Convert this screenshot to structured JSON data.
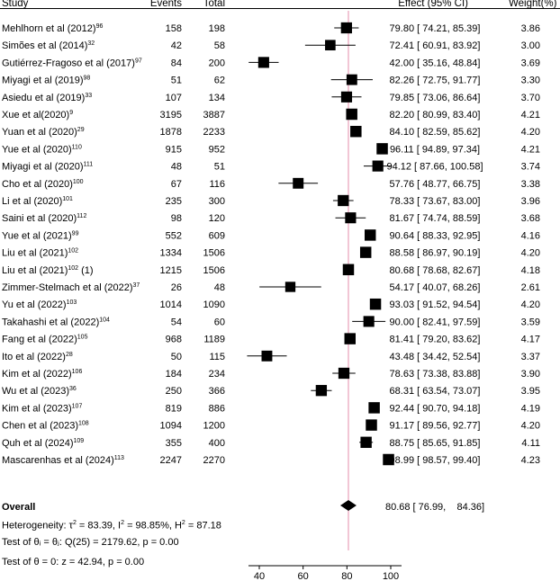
{
  "headers": {
    "study": "Study",
    "events": "Events",
    "total": "Total",
    "effect": "Effect (95% CI)",
    "weight": "Weight(%)"
  },
  "overall": {
    "label": "Overall",
    "effect": 80.68,
    "lo": 76.99,
    "hi": 84.36,
    "effect_text": "80.68 [ 76.99,    84.36]"
  },
  "heterogeneity": {
    "prefix": "Heterogeneity: τ",
    "tau2": "= 83.39, I",
    "i2": "= 98.85%, H",
    "h2": "= 87.18"
  },
  "test_theta_i": "Test of θᵢ = θⱼ: Q(25) = 2179.62, p = 0.00",
  "test_theta_0": "Test of θ = 0: z = 42.94, p = 0.00",
  "colors": {
    "reference_line": "#e8a0b8",
    "marker": "#000000"
  },
  "chart_data": {
    "type": "forest",
    "xlim": [
      40,
      100
    ],
    "xticks": [
      40,
      60,
      80,
      100
    ],
    "reference_line": 80.68,
    "studies": [
      {
        "name": "Mehlhorn et al (2012)",
        "sup": "96",
        "events": 158,
        "total": 198,
        "effect": 79.8,
        "lo": 74.21,
        "hi": 85.39,
        "weight": 3.86
      },
      {
        "name": "Simões et al (2014)",
        "sup": "32",
        "events": 42,
        "total": 58,
        "effect": 72.41,
        "lo": 60.91,
        "hi": 83.92,
        "weight": 3.0
      },
      {
        "name": "Gutiérrez-Fragoso et al (2017)",
        "sup": "97",
        "events": 84,
        "total": 200,
        "effect": 42.0,
        "lo": 35.16,
        "hi": 48.84,
        "weight": 3.69
      },
      {
        "name": "Miyagi et al (2019)",
        "sup": "98",
        "events": 51,
        "total": 62,
        "effect": 82.26,
        "lo": 72.75,
        "hi": 91.77,
        "weight": 3.3
      },
      {
        "name": "Asiedu et al (2019)",
        "sup": "33",
        "events": 107,
        "total": 134,
        "effect": 79.85,
        "lo": 73.06,
        "hi": 86.64,
        "weight": 3.7
      },
      {
        "name": "Xue et al(2020)",
        "sup": "9",
        "events": 3195,
        "total": 3887,
        "effect": 82.2,
        "lo": 80.99,
        "hi": 83.4,
        "weight": 4.21
      },
      {
        "name": "Yuan et al (2020)",
        "sup": "29",
        "events": 1878,
        "total": 2233,
        "effect": 84.1,
        "lo": 82.59,
        "hi": 85.62,
        "weight": 4.2
      },
      {
        "name": "Yue et al (2020)",
        "sup": "110",
        "events": 915,
        "total": 952,
        "effect": 96.11,
        "lo": 94.89,
        "hi": 97.34,
        "weight": 4.21
      },
      {
        "name": "Miyagi et al (2020)",
        "sup": "111",
        "events": 48,
        "total": 51,
        "effect": 94.12,
        "lo": 87.66,
        "hi": 100.58,
        "weight": 3.74
      },
      {
        "name": "Cho et al (2020)",
        "sup": "100",
        "events": 67,
        "total": 116,
        "effect": 57.76,
        "lo": 48.77,
        "hi": 66.75,
        "weight": 3.38
      },
      {
        "name": "Li et al (2020)",
        "sup": "101",
        "events": 235,
        "total": 300,
        "effect": 78.33,
        "lo": 73.67,
        "hi": 83.0,
        "weight": 3.96
      },
      {
        "name": "Saini et al (2020)",
        "sup": "112",
        "events": 98,
        "total": 120,
        "effect": 81.67,
        "lo": 74.74,
        "hi": 88.59,
        "weight": 3.68
      },
      {
        "name": "Yue et al (2021)",
        "sup": "99",
        "events": 552,
        "total": 609,
        "effect": 90.64,
        "lo": 88.33,
        "hi": 92.95,
        "weight": 4.16
      },
      {
        "name": "Liu et al (2021)",
        "sup": "102",
        "events": 1334,
        "total": 1506,
        "effect": 88.58,
        "lo": 86.97,
        "hi": 90.19,
        "weight": 4.2
      },
      {
        "name": "Liu et al (2021)",
        "sup": "102",
        "suffix": " (1)",
        "events": 1215,
        "total": 1506,
        "effect": 80.68,
        "lo": 78.68,
        "hi": 82.67,
        "weight": 4.18
      },
      {
        "name": "Zimmer-Stelmach et al (2022)",
        "sup": "37",
        "events": 26,
        "total": 48,
        "effect": 54.17,
        "lo": 40.07,
        "hi": 68.26,
        "weight": 2.61
      },
      {
        "name": "Yu et al (2022)",
        "sup": "103",
        "events": 1014,
        "total": 1090,
        "effect": 93.03,
        "lo": 91.52,
        "hi": 94.54,
        "weight": 4.2
      },
      {
        "name": "Takahashi et al (2022)",
        "sup": "104",
        "events": 54,
        "total": 60,
        "effect": 90.0,
        "lo": 82.41,
        "hi": 97.59,
        "weight": 3.59
      },
      {
        "name": "Fang et al (2022)",
        "sup": "105",
        "events": 968,
        "total": 1189,
        "effect": 81.41,
        "lo": 79.2,
        "hi": 83.62,
        "weight": 4.17
      },
      {
        "name": "Ito et al (2022)",
        "sup": "28",
        "events": 50,
        "total": 115,
        "effect": 43.48,
        "lo": 34.42,
        "hi": 52.54,
        "weight": 3.37
      },
      {
        "name": "Kim et al (2022)",
        "sup": "106",
        "events": 184,
        "total": 234,
        "effect": 78.63,
        "lo": 73.38,
        "hi": 83.88,
        "weight": 3.9
      },
      {
        "name": "Wu et al (2023)",
        "sup": "36",
        "events": 250,
        "total": 366,
        "effect": 68.31,
        "lo": 63.54,
        "hi": 73.07,
        "weight": 3.95
      },
      {
        "name": "Kim et al (2023)",
        "sup": "107",
        "events": 819,
        "total": 886,
        "effect": 92.44,
        "lo": 90.7,
        "hi": 94.18,
        "weight": 4.19
      },
      {
        "name": "Chen et al (2023)",
        "sup": "108",
        "events": 1094,
        "total": 1200,
        "effect": 91.17,
        "lo": 89.56,
        "hi": 92.77,
        "weight": 4.2
      },
      {
        "name": "Quh et al (2024)",
        "sup": "109",
        "events": 355,
        "total": 400,
        "effect": 88.75,
        "lo": 85.65,
        "hi": 91.85,
        "weight": 4.11
      },
      {
        "name": "Mascarenhas et al (2024)",
        "sup": "113",
        "events": 2247,
        "total": 2270,
        "effect": 98.99,
        "lo": 98.57,
        "hi": 99.4,
        "weight": 4.23
      }
    ]
  }
}
